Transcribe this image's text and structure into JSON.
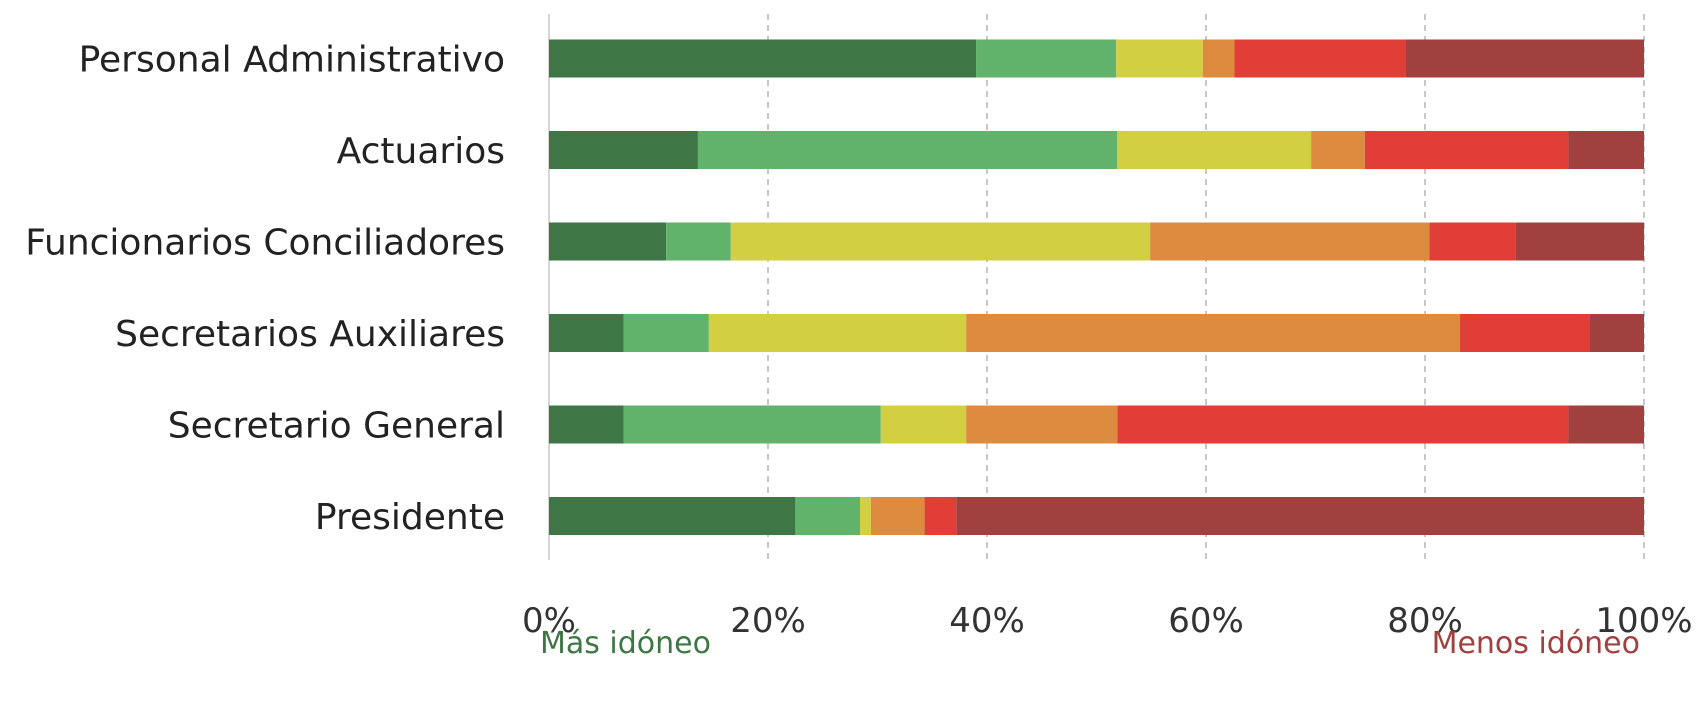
{
  "chart_data": {
    "type": "bar",
    "orientation": "horizontal",
    "stacked": "100%",
    "categories": [
      "Personal Administrativo",
      "Actuarios",
      "Funcionarios Conciliadores",
      "Secretarios Auxiliares",
      "Secretario General",
      "Presidente"
    ],
    "series": [
      {
        "color": "#3f7645",
        "values": [
          39,
          13.6,
          10.7,
          6.8,
          6.8,
          22.5
        ]
      },
      {
        "color": "#61b26a",
        "values": [
          12.8,
          38.3,
          5.9,
          7.8,
          23.5,
          5.9
        ]
      },
      {
        "color": "#d3cf42",
        "values": [
          7.9,
          17.7,
          38.3,
          23.5,
          7.8,
          1.0
        ]
      },
      {
        "color": "#dd8b3e",
        "values": [
          2.9,
          4.9,
          25.5,
          45.1,
          13.8,
          4.9
        ]
      },
      {
        "color": "#e03e37",
        "values": [
          15.6,
          18.6,
          7.9,
          11.8,
          41.2,
          2.9
        ]
      },
      {
        "color": "#a0413f",
        "values": [
          21.8,
          6.9,
          11.7,
          5.0,
          6.9,
          62.8
        ]
      }
    ],
    "xlim": [
      0,
      100
    ],
    "x_ticks": [
      "0%",
      "20%",
      "40%",
      "60%",
      "80%",
      "100%"
    ],
    "grid": "vertical dashed",
    "legend": {
      "type": "gradient",
      "placement": "bottom",
      "left_label": "Más idóneo",
      "right_label": "Menos idóneo",
      "left_color": "#3f7645",
      "mid_color": "#d3cf42",
      "right_color": "#a0413f"
    }
  }
}
